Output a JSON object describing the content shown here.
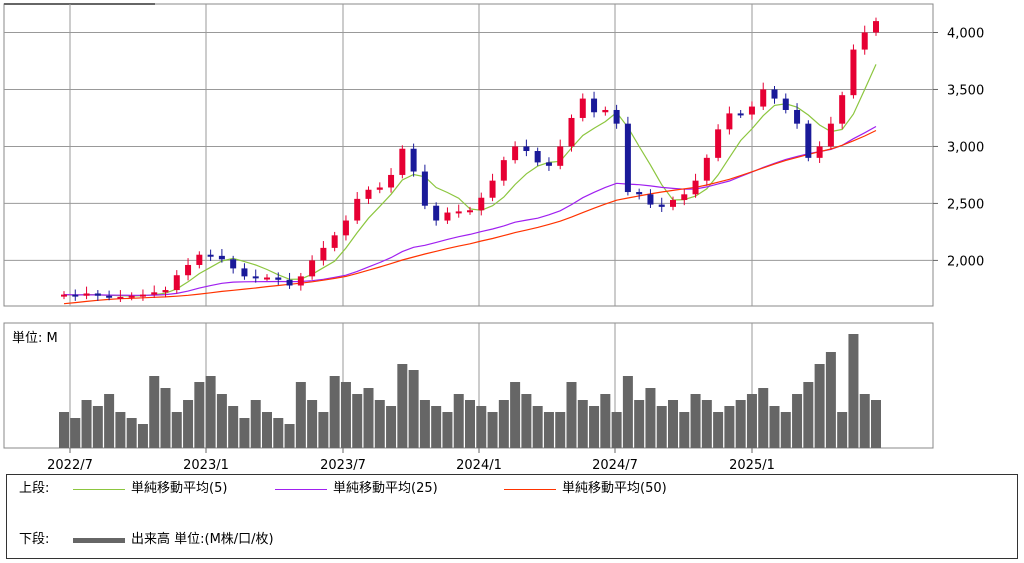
{
  "chart_data": {
    "type": "candlestick",
    "price_axis": {
      "ticks": [
        "2,000",
        "2,500",
        "3,000",
        "3,500",
        "4,000"
      ],
      "ylim": [
        1600,
        4250
      ]
    },
    "volume_axis": {
      "unit_label": "単位: M"
    },
    "x_ticks": [
      "2022/7",
      "2023/1",
      "2023/7",
      "2024/1",
      "2024/7",
      "2025/1"
    ],
    "price_close": [
      1700,
      1690,
      1710,
      1690,
      1680,
      1680,
      1690,
      1700,
      1720,
      1740,
      1870,
      1960,
      2050,
      2040,
      2010,
      1930,
      1860,
      1850,
      1850,
      1830,
      1780,
      1860,
      2000,
      2110,
      2220,
      2350,
      2540,
      2620,
      2640,
      2750,
      2980,
      2780,
      2480,
      2350,
      2420,
      2430,
      2440,
      2550,
      2700,
      2880,
      3000,
      2960,
      2860,
      2830,
      3000,
      3250,
      3420,
      3300,
      3320,
      3200,
      2600,
      2580,
      2490,
      2470,
      2530,
      2580,
      2700,
      2900,
      3150,
      3290,
      3280,
      3350,
      3500,
      3420,
      3320,
      3200,
      2900,
      3000,
      3200,
      3450,
      3850,
      4000,
      4100
    ],
    "ma_series": [
      {
        "name": "単純移動平均(5)",
        "color": "#8cc63f",
        "values": [
          1700,
          1695,
          1700,
          1697,
          1694,
          1690,
          1688,
          1690,
          1700,
          1712,
          1750,
          1812,
          1884,
          1940,
          1995,
          2018,
          1990,
          1960,
          1920,
          1874,
          1834,
          1836,
          1878,
          1936,
          1994,
          2108,
          2244,
          2370,
          2474,
          2580,
          2706,
          2754,
          2734,
          2640,
          2596,
          2546,
          2452,
          2440,
          2480,
          2556,
          2666,
          2760,
          2828,
          2860,
          2870,
          2986,
          3096,
          3160,
          3218,
          3298,
          3168,
          3000,
          2838,
          2664,
          2530,
          2534,
          2564,
          2628,
          2750,
          2902,
          3052,
          3154,
          3270,
          3360,
          3374,
          3344,
          3276,
          3188,
          3130,
          3150,
          3284,
          3500,
          3720
        ]
      },
      {
        "name": "単純移動平均(25)",
        "color": "#a020f0",
        "values": [
          1700,
          1698,
          1697,
          1697,
          1696,
          1695,
          1694,
          1694,
          1696,
          1700,
          1711,
          1731,
          1757,
          1779,
          1799,
          1810,
          1812,
          1813,
          1814,
          1815,
          1814,
          1815,
          1822,
          1834,
          1852,
          1870,
          1904,
          1943,
          1982,
          2025,
          2077,
          2115,
          2133,
          2158,
          2184,
          2208,
          2228,
          2253,
          2276,
          2303,
          2335,
          2354,
          2370,
          2400,
          2435,
          2490,
          2550,
          2598,
          2641,
          2677,
          2670,
          2664,
          2654,
          2641,
          2632,
          2625,
          2627,
          2645,
          2671,
          2697,
          2737,
          2775,
          2816,
          2852,
          2886,
          2912,
          2936,
          2955,
          2974,
          3010,
          3068,
          3120,
          3175
        ]
      },
      {
        "name": "単純移動平均(50)",
        "color": "#ff3300",
        "values": [
          1620,
          1630,
          1640,
          1650,
          1658,
          1664,
          1668,
          1672,
          1676,
          1680,
          1686,
          1694,
          1704,
          1716,
          1728,
          1738,
          1748,
          1758,
          1770,
          1780,
          1790,
          1800,
          1812,
          1826,
          1842,
          1860,
          1886,
          1914,
          1942,
          1972,
          2004,
          2030,
          2056,
          2080,
          2104,
          2126,
          2146,
          2170,
          2192,
          2218,
          2244,
          2266,
          2290,
          2316,
          2344,
          2380,
          2420,
          2458,
          2494,
          2528,
          2548,
          2566,
          2584,
          2600,
          2614,
          2628,
          2642,
          2662,
          2686,
          2712,
          2744,
          2778,
          2812,
          2846,
          2878,
          2904,
          2930,
          2954,
          2978,
          3010,
          3050,
          3092,
          3140
        ]
      }
    ],
    "volume": [
      30,
      25,
      40,
      35,
      45,
      30,
      25,
      20,
      60,
      50,
      30,
      40,
      55,
      60,
      45,
      35,
      25,
      40,
      30,
      25,
      20,
      55,
      40,
      30,
      60,
      55,
      45,
      50,
      40,
      35,
      70,
      65,
      40,
      35,
      30,
      45,
      40,
      35,
      30,
      40,
      55,
      45,
      35,
      30,
      30,
      55,
      40,
      35,
      45,
      30,
      60,
      40,
      50,
      35,
      40,
      30,
      45,
      40,
      30,
      35,
      40,
      45,
      50,
      35,
      30,
      45,
      55,
      70,
      80,
      30,
      95,
      45,
      40
    ],
    "up_color": "#e60033",
    "down_color": "#1a1a99"
  },
  "legend": {
    "top_label": "上段:",
    "bottom_label": "下段:",
    "vol_label": "出来高 単位:(M株/口/枚)"
  }
}
